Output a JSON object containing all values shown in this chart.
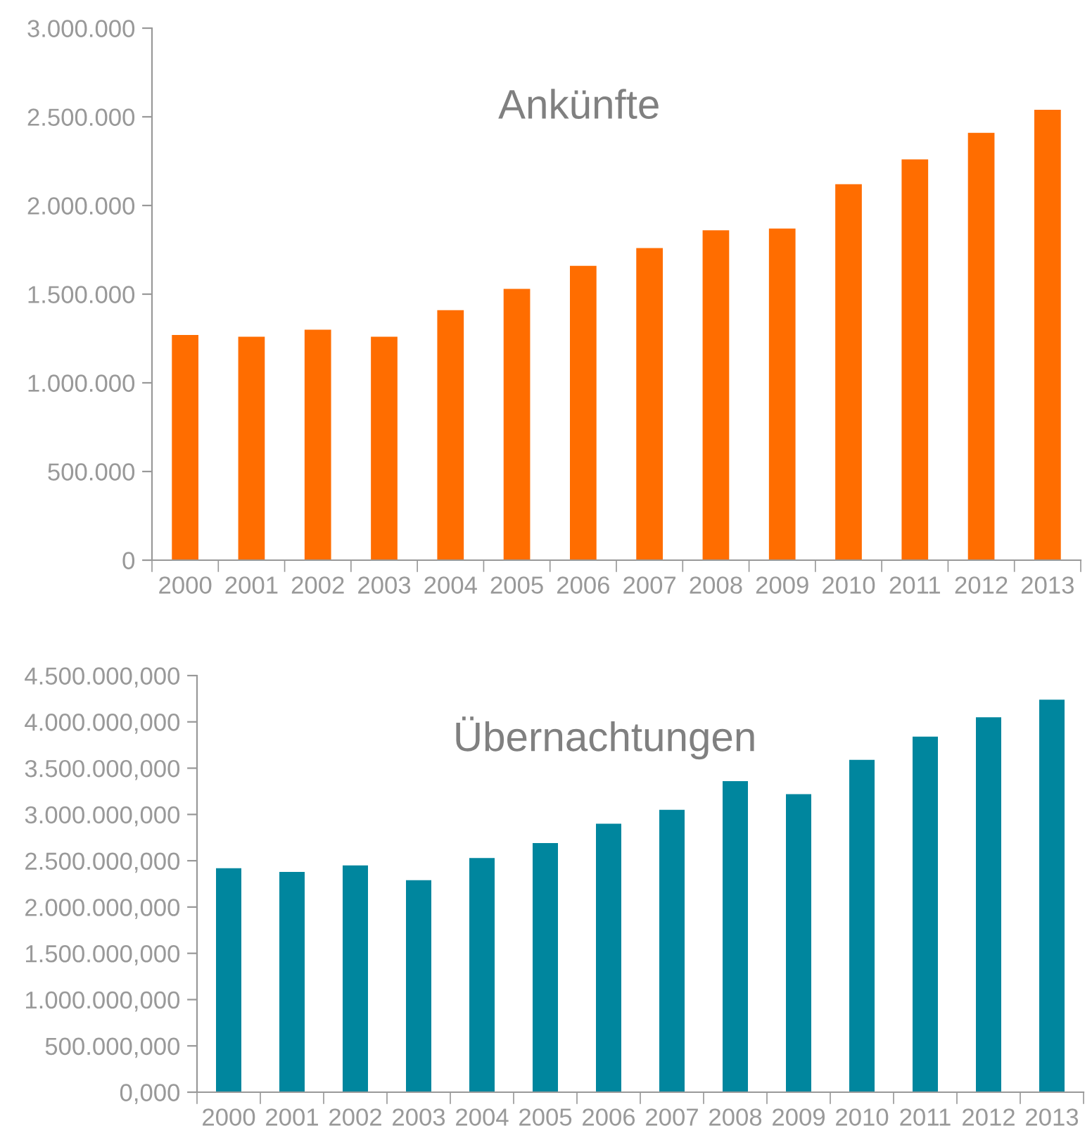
{
  "chart_data": [
    {
      "type": "bar",
      "title": "Ankünfte",
      "categories": [
        "2000",
        "2001",
        "2002",
        "2003",
        "2004",
        "2005",
        "2006",
        "2007",
        "2008",
        "2009",
        "2010",
        "2011",
        "2012",
        "2013"
      ],
      "values": [
        1270000,
        1260000,
        1300000,
        1260000,
        1410000,
        1530000,
        1660000,
        1760000,
        1860000,
        1870000,
        2120000,
        2260000,
        2410000,
        2540000
      ],
      "color": "#ff6d00",
      "ylim": [
        0,
        3000000
      ],
      "yticks": [
        0,
        {
          "value": 500000,
          "label": "500.000"
        },
        {
          "value": 1000000,
          "label": "1.000.000"
        },
        {
          "value": 1500000,
          "label": "1.500.000"
        },
        {
          "value": 2000000,
          "label": "2.000.000"
        },
        {
          "value": 2500000,
          "label": "2.500.000"
        },
        {
          "value": 3000000,
          "label": "3.000.000"
        }
      ],
      "grid": false
    },
    {
      "type": "bar",
      "title": "Übernachtungen",
      "categories": [
        "2000",
        "2001",
        "2002",
        "2003",
        "2004",
        "2005",
        "2006",
        "2007",
        "2008",
        "2009",
        "2010",
        "2011",
        "2012",
        "2013"
      ],
      "values": [
        2420000,
        2380000,
        2450000,
        2290000,
        2530000,
        2690000,
        2900000,
        3050000,
        3360000,
        3220000,
        3590000,
        3840000,
        4050000,
        4240000
      ],
      "color": "#00869e",
      "ylim": [
        0,
        4500000
      ],
      "yticks": [
        {
          "value": 0,
          "label": "0,000"
        },
        {
          "value": 500000,
          "label": "500.000,000"
        },
        {
          "value": 1000000,
          "label": "1.000.000,000"
        },
        {
          "value": 1500000,
          "label": "1.500.000,000"
        },
        {
          "value": 2000000,
          "label": "2.000.000,000"
        },
        {
          "value": 2500000,
          "label": "2.500.000,000"
        },
        {
          "value": 3000000,
          "label": "3.000.000,000"
        },
        {
          "value": 3500000,
          "label": "3.500.000,000"
        },
        {
          "value": 4000000,
          "label": "4.000.000,000"
        },
        {
          "value": 4500000,
          "label": "4.500.000,000"
        }
      ],
      "grid": false
    }
  ]
}
